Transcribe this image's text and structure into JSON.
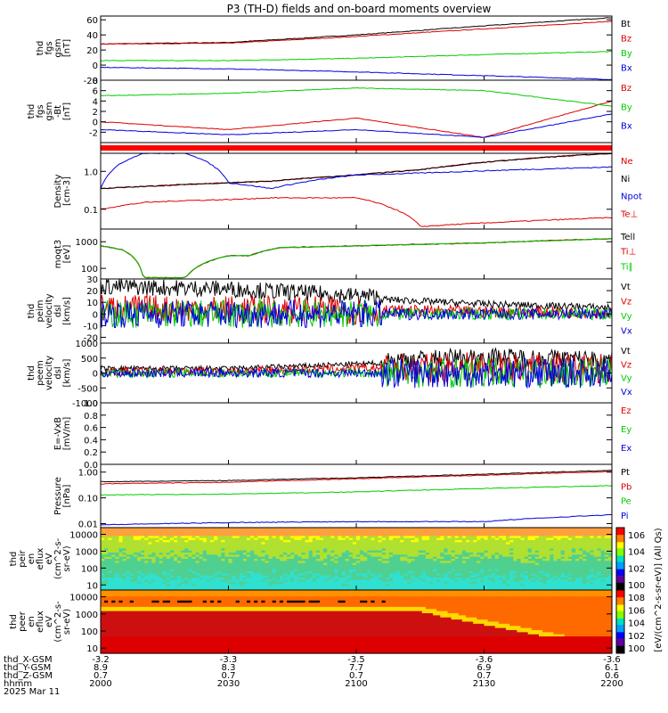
{
  "title": "P3 (TH-D) fields and on-board moments overview",
  "footer": {
    "rows": [
      {
        "label": "thd_X-GSM",
        "values": [
          "-3.2",
          "-3.3",
          "-3.5",
          "-3.6",
          "-3.6"
        ]
      },
      {
        "label": "thd_Y-GSM",
        "values": [
          "8.9",
          "8.3",
          "7.7",
          "6.9",
          "6.1"
        ]
      },
      {
        "label": "thd_Z-GSM",
        "values": [
          "0.7",
          "0.7",
          "0.7",
          "0.7",
          "0.6"
        ]
      },
      {
        "label": "hhmm",
        "values": [
          "2000",
          "2030",
          "2100",
          "2130",
          "2200"
        ]
      },
      {
        "label": "2025 Mar 11",
        "values": []
      }
    ]
  },
  "colors": {
    "black": "#000000",
    "red": "#dd0000",
    "blue": "#0000dd",
    "green": "#00cc00"
  },
  "colorbar_label": "[eV/(cm^2-s-sr-eV)] (All Qs)",
  "colorbar_ticks_1": [
    "10^6",
    "10^4",
    "10^2",
    "10^0"
  ],
  "colorbar_ticks_2": [
    "10^8",
    "10^6",
    "10^4",
    "10^2",
    "10^0"
  ],
  "chart_data": [
    {
      "type": "line",
      "ylabel": [
        "thd",
        "fgs",
        "gsm",
        "[nT]"
      ],
      "ylim": [
        -20,
        65
      ],
      "yticks": [
        "60",
        "40",
        "20",
        "0",
        "-20"
      ],
      "x": [
        "2000",
        "2030",
        "2100",
        "2130",
        "2200"
      ],
      "series": [
        {
          "name": "Bt",
          "values": [
            28,
            30,
            40,
            52,
            63
          ]
        },
        {
          "name": "Bz",
          "values": [
            28,
            29,
            38,
            48,
            58
          ]
        },
        {
          "name": "By",
          "values": [
            6,
            6,
            9,
            14,
            18
          ]
        },
        {
          "name": "Bx",
          "values": [
            -3,
            -5,
            -9,
            -14,
            -19
          ]
        }
      ]
    },
    {
      "type": "line",
      "ylabel": [
        "thd",
        "fgs",
        "gsm",
        "-Bt",
        "[nT]"
      ],
      "ylim": [
        -4,
        8
      ],
      "yticks": [
        "8",
        "6",
        "4",
        "2",
        "0",
        "-2"
      ],
      "x": [
        "2000",
        "2030",
        "2100",
        "2130",
        "2200"
      ],
      "series": [
        {
          "name": "Bz",
          "values": [
            0,
            -1.5,
            0.7,
            -3,
            4
          ]
        },
        {
          "name": "By",
          "values": [
            5,
            5.5,
            6.5,
            6,
            3
          ]
        },
        {
          "name": "Bx",
          "values": [
            -1.5,
            -2.5,
            -1.5,
            -3,
            1.5
          ]
        }
      ]
    },
    {
      "type": "line",
      "ylabel": [],
      "ylim": [
        0,
        1
      ],
      "yticks": [],
      "x": [
        "2000",
        "2200"
      ],
      "series": [
        {
          "name": "",
          "values": [
            0.5,
            0.5
          ]
        }
      ]
    },
    {
      "type": "line",
      "ylabel": [
        "Density",
        "[cm-3]"
      ],
      "yscale": "log",
      "ylim": [
        0.03,
        3
      ],
      "yticks": [
        "1.0",
        "0.1"
      ],
      "x": [
        "2000",
        "2010",
        "2020",
        "2030",
        "2040",
        "2100",
        "2115",
        "2200"
      ],
      "series": [
        {
          "name": "Ne",
          "values": [
            0.35,
            0.4,
            0.45,
            0.5,
            0.55,
            0.8,
            1.1,
            3
          ]
        },
        {
          "name": "Ni",
          "values": [
            0.35,
            0.4,
            0.45,
            0.5,
            0.55,
            0.8,
            1.1,
            3
          ]
        },
        {
          "name": "Npot",
          "values": [
            0.35,
            3,
            3,
            0.5,
            0.35,
            0.8,
            0.9,
            1.3
          ]
        },
        {
          "name": "Te⊥",
          "values": [
            0.1,
            0.15,
            0.17,
            0.18,
            0.2,
            0.2,
            0.035,
            0.06
          ]
        }
      ]
    },
    {
      "type": "line",
      "ylabel": [
        "moqt3",
        "[eV]"
      ],
      "yscale": "log",
      "ylim": [
        40,
        3000
      ],
      "yticks": [
        "1000",
        "100"
      ],
      "x": [
        "2000",
        "2005",
        "2010",
        "2020",
        "2030",
        "2035",
        "2042",
        "2100",
        "2130",
        "2200"
      ],
      "series": [
        {
          "name": "Tell",
          "values": [
            700,
            500,
            45,
            45,
            300,
            300,
            600,
            700,
            900,
            1300
          ]
        },
        {
          "name": "Ti⊥",
          "values": [
            700,
            500,
            45,
            45,
            300,
            300,
            600,
            700,
            900,
            1300
          ]
        },
        {
          "name": "Ti∥",
          "values": [
            700,
            500,
            45,
            45,
            300,
            300,
            600,
            700,
            900,
            1300
          ]
        }
      ]
    },
    {
      "type": "line",
      "ylabel": [
        "thd",
        "peim",
        "velocity",
        "dsl",
        "[km/s]"
      ],
      "ylim": [
        -25,
        30
      ],
      "yticks": [
        "30",
        "20",
        "10",
        "0",
        "-10",
        "-20"
      ],
      "x": [
        "2000",
        "2030",
        "2100",
        "2130",
        "2200"
      ],
      "series": [
        {
          "name": "Vt",
          "values": [
            20,
            18,
            12,
            7,
            4
          ]
        },
        {
          "name": "Vz",
          "values": [
            5,
            4,
            3,
            2,
            1
          ]
        },
        {
          "name": "Vy",
          "values": [
            0,
            0,
            0,
            0,
            0
          ]
        },
        {
          "name": "Vx",
          "values": [
            0,
            0,
            0,
            0,
            0
          ]
        }
      ]
    },
    {
      "type": "line",
      "ylabel": [
        "thd",
        "peem",
        "velocity",
        "dsl",
        "[km/s]"
      ],
      "ylim": [
        -1000,
        1000
      ],
      "yticks": [
        "1000",
        "500",
        "0",
        "-500",
        "-1000"
      ],
      "x": [
        "2000",
        "2030",
        "2100",
        "2130",
        "2200"
      ],
      "series": [
        {
          "name": "Vt",
          "values": [
            100,
            100,
            250,
            400,
            300
          ]
        },
        {
          "name": "Vz",
          "values": [
            50,
            50,
            150,
            200,
            150
          ]
        },
        {
          "name": "Vy",
          "values": [
            0,
            0,
            0,
            0,
            0
          ]
        },
        {
          "name": "Vx",
          "values": [
            0,
            0,
            0,
            0,
            0
          ]
        }
      ]
    },
    {
      "type": "line",
      "ylabel": [
        "E=-VxB",
        "[mV/m]"
      ],
      "ylim": [
        0,
        1
      ],
      "yticks": [
        "1.0",
        "0.8",
        "0.6",
        "0.4",
        "0.2",
        "0.0"
      ],
      "x": [],
      "series": [
        {
          "name": "Ez",
          "values": []
        },
        {
          "name": "Ey",
          "values": []
        },
        {
          "name": "Ex",
          "values": []
        }
      ]
    },
    {
      "type": "line",
      "ylabel": [
        "Pressure",
        "[nPa]"
      ],
      "yscale": "log",
      "ylim": [
        0.007,
        2
      ],
      "yticks": [
        "1.00",
        "0.10",
        "0.01"
      ],
      "x": [
        "2000",
        "2030",
        "2100",
        "2130",
        "2200"
      ],
      "series": [
        {
          "name": "Pt",
          "values": [
            0.42,
            0.47,
            0.6,
            0.82,
            1.15
          ]
        },
        {
          "name": "Pb",
          "values": [
            0.35,
            0.4,
            0.55,
            0.75,
            1.05
          ]
        },
        {
          "name": "Pe",
          "values": [
            0.13,
            0.14,
            0.17,
            0.23,
            0.3
          ]
        },
        {
          "name": "Pi",
          "values": [
            0.009,
            0.011,
            0.012,
            0.012,
            0.022
          ]
        }
      ]
    },
    {
      "type": "heatmap",
      "ylabel": [
        "thd",
        "peir",
        "en",
        "eflux",
        "eV",
        "(cm^2-s-",
        "sr-eV)"
      ],
      "yscale": "log",
      "ylim": [
        5,
        25000
      ],
      "yticks": [
        "10000",
        "1000",
        "100",
        "10"
      ]
    },
    {
      "type": "heatmap",
      "ylabel": [
        "thd",
        "peer",
        "en",
        "eflux",
        "eV",
        "(cm^2-s-",
        "sr-eV)"
      ],
      "yscale": "log",
      "ylim": [
        5,
        25000
      ],
      "yticks": [
        "10000",
        "1000",
        "100",
        "10"
      ]
    }
  ]
}
